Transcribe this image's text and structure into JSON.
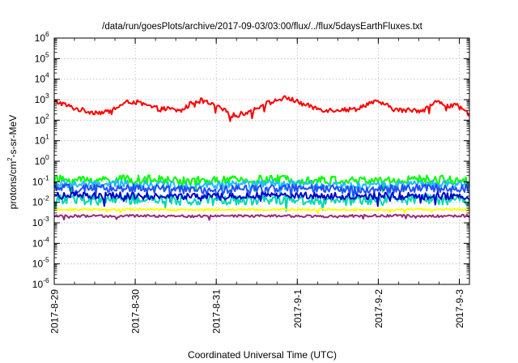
{
  "chart_data": {
    "type": "line",
    "title": "/data/run/goesPlots/archive/2017-09-03/03:00/flux/../flux/5daysEarthFluxes.txt",
    "xlabel": "Coordinated Universal Time (UTC)",
    "ylabel": {
      "pre": "protons/cm",
      "sup": "2",
      "post": "-s-sr-MeV"
    },
    "yscale": "log",
    "ylim": [
      1e-06,
      1000000.0
    ],
    "y_ticks": [
      {
        "mant": "10",
        "exp": "-6"
      },
      {
        "mant": "10",
        "exp": "-5"
      },
      {
        "mant": "10",
        "exp": "-4"
      },
      {
        "mant": "10",
        "exp": "-3"
      },
      {
        "mant": "10",
        "exp": "-2"
      },
      {
        "mant": "10",
        "exp": "-1"
      },
      {
        "mant": "10",
        "exp": "0"
      },
      {
        "mant": "10",
        "exp": "1"
      },
      {
        "mant": "10",
        "exp": "2"
      },
      {
        "mant": "10",
        "exp": "3"
      },
      {
        "mant": "10",
        "exp": "4"
      },
      {
        "mant": "10",
        "exp": "5"
      },
      {
        "mant": "10",
        "exp": "6"
      }
    ],
    "xlim": [
      "2017-08-29 00:00",
      "2017-09-03 03:00"
    ],
    "x_tick_labels": [
      "2017-8-29",
      "2017-8-30",
      "2017-8-31",
      "2017-9-1",
      "2017-9-2",
      "2017-9-3"
    ],
    "grid": true,
    "series": [
      {
        "color": "#ff0000",
        "noise": 0.12,
        "values": [
          800,
          700,
          520,
          400,
          330,
          280,
          250,
          250,
          230,
          300,
          430,
          600,
          820,
          760,
          600,
          480,
          390,
          340,
          360,
          320,
          280,
          430,
          780,
          980,
          800,
          560,
          420,
          300,
          200,
          160,
          220,
          260,
          330,
          580,
          680,
          830,
          1100,
          1200,
          980,
          700,
          550,
          430,
          370,
          320,
          310,
          330,
          330,
          330,
          360,
          480,
          680,
          740,
          700,
          480,
          350,
          300,
          300,
          320,
          300,
          350,
          570,
          830,
          600,
          500,
          500,
          300,
          200
        ]
      },
      {
        "color": "#00ff00",
        "noise": 0.22,
        "values": [
          0.13,
          0.12,
          0.13,
          0.12,
          0.11,
          0.12,
          0.13,
          0.12,
          0.11,
          0.12,
          0.13,
          0.12
        ]
      },
      {
        "color": "#22bbff",
        "noise": 0.2,
        "values": [
          0.08,
          0.07,
          0.08,
          0.07,
          0.065,
          0.075,
          0.08,
          0.07,
          0.065,
          0.07,
          0.075,
          0.07
        ]
      },
      {
        "color": "#1f4fff",
        "noise": 0.2,
        "values": [
          0.05,
          0.045,
          0.05,
          0.042,
          0.04,
          0.045,
          0.05,
          0.045,
          0.04,
          0.045,
          0.05,
          0.045
        ]
      },
      {
        "color": "#00d8b0",
        "noise": 0.25,
        "values": [
          0.015,
          0.013,
          0.014,
          0.013,
          0.012,
          0.013,
          0.014,
          0.013,
          0.012,
          0.013,
          0.014,
          0.013
        ]
      },
      {
        "color": "#0000cc",
        "noise": 0.18,
        "values": [
          0.022,
          0.02,
          0.021,
          0.019,
          0.018,
          0.02,
          0.022,
          0.02,
          0.019,
          0.02,
          0.021,
          0.02
        ]
      },
      {
        "color": "#ffff00",
        "noise": 0.05,
        "values": [
          0.0045,
          0.0044,
          0.0045,
          0.0044,
          0.0043,
          0.0044,
          0.0045,
          0.0044,
          0.0044,
          0.0044,
          0.0045,
          0.0044
        ]
      },
      {
        "color": "#992a7a",
        "noise": 0.06,
        "values": [
          0.0022,
          0.0021,
          0.0022,
          0.0021,
          0.0021,
          0.0022,
          0.0022,
          0.0021,
          0.0022,
          0.0022,
          0.0021,
          0.0022
        ]
      }
    ]
  }
}
